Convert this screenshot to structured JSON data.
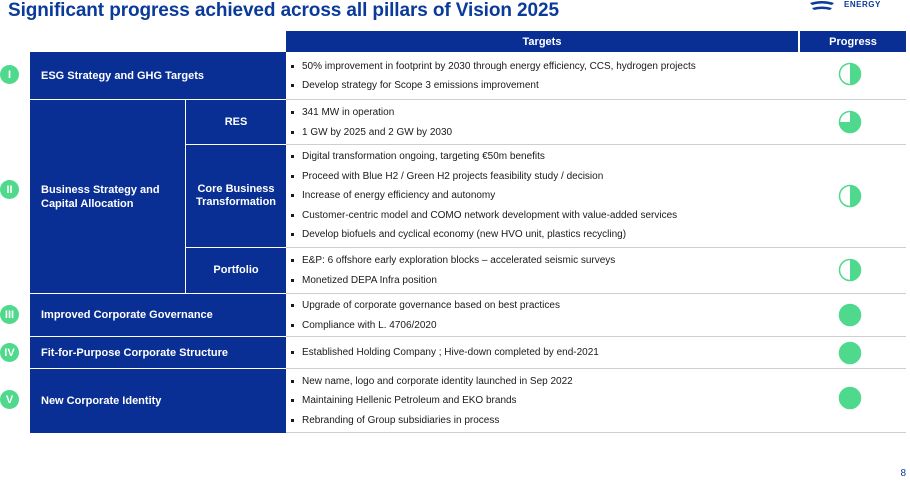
{
  "title": "Significant progress achieved across all pillars of Vision 2025",
  "logo_text": "ENERGY",
  "page_number": "8",
  "header": {
    "targets": "Targets",
    "progress": "Progress"
  },
  "colors": {
    "navy": "#0a2f94",
    "green": "#4ed98c",
    "title": "#0a3a9a"
  },
  "pillars": [
    {
      "roman": "I",
      "label": "ESG Strategy and GHG Targets"
    },
    {
      "roman": "II",
      "label": "Business Strategy and Capital Allocation"
    },
    {
      "roman": "III",
      "label": "Improved Corporate Governance"
    },
    {
      "roman": "IV",
      "label": "Fit-for-Purpose Corporate Structure"
    },
    {
      "roman": "V",
      "label": "New Corporate Identity"
    }
  ],
  "sub_pillars": [
    "RES",
    "Core Business Transformation",
    "Portfolio"
  ],
  "rows": [
    {
      "targets": [
        "50% improvement in footprint by 2030 through energy efficiency, CCS, hydrogen projects",
        "Develop strategy for Scope 3 emissions improvement"
      ],
      "progress": 0.5
    },
    {
      "targets": [
        "341 MW in operation",
        "1 GW by 2025 and 2 GW by 2030"
      ],
      "progress": 0.75
    },
    {
      "targets": [
        "Digital transformation ongoing, targeting €50m benefits",
        "Proceed with Blue H2 / Green H2 projects feasibility study / decision",
        "Increase of energy efficiency and autonomy",
        "Customer-centric model and COMO network development with value-added services",
        "Develop biofuels and cyclical economy (new HVO unit, plastics recycling)"
      ],
      "progress": 0.5
    },
    {
      "targets": [
        "E&P:  6 offshore early exploration blocks – accelerated seismic surveys",
        "Monetized DEPA Infra position"
      ],
      "progress": 0.5
    },
    {
      "targets": [
        "Upgrade of corporate governance based on best practices",
        "Compliance with L. 4706/2020"
      ],
      "progress": 1.0
    },
    {
      "targets": [
        "Established Holding Company ; Hive-down completed by end-2021"
      ],
      "progress": 1.0
    },
    {
      "targets": [
        "New name, logo and corporate identity launched in Sep 2022",
        "Maintaining Hellenic Petroleum and EKO brands",
        "Rebranding of Group subsidiaries in process"
      ],
      "progress": 1.0
    }
  ]
}
